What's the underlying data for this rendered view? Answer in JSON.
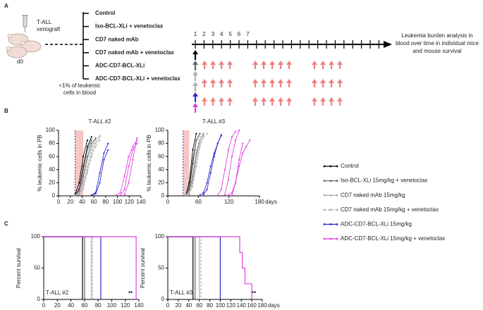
{
  "panel_a": {
    "label": "A",
    "xenograft": [
      "T-ALL",
      "xenograft"
    ],
    "day": "d0",
    "blood_note": [
      "≈1% of leukemic",
      "cells in blood"
    ],
    "groups": [
      {
        "name": "Control",
        "color": "#000000"
      },
      {
        "name": "Iso-BCL-XLi + venetoclax",
        "color": "#666666"
      },
      {
        "name": "CD7 naked mAb",
        "color": "#b0b0b0"
      },
      {
        "name": "CD7 naked mAb + venetoclax",
        "color": "#b0b0b0"
      },
      {
        "name": "ADC-CD7-BCL-XLi",
        "color": "#2a2ad0"
      },
      {
        "name": "ADC-CD7-BCL-XLi + venetoclax",
        "color": "#e040e0"
      }
    ],
    "weeks": [
      1,
      2,
      3,
      4,
      5,
      6,
      7
    ],
    "outcome": [
      "Leukemia  burden analysis in",
      "blood over time in individual mice",
      "and mouse survival"
    ]
  },
  "panel_labels": [
    "B",
    "C"
  ],
  "chart_data": [
    {
      "type": "line",
      "title": "T-ALL #2",
      "ylabel": "% leukemic cells in PB",
      "xlim": [
        0,
        140
      ],
      "xticks": [
        0,
        20,
        40,
        60,
        80,
        100,
        120,
        140
      ],
      "ylim": [
        0,
        100
      ],
      "yticks": [
        0,
        20,
        40,
        60,
        80,
        100
      ],
      "shaded_x": [
        28,
        42
      ],
      "dashed_x": 28,
      "series": [
        {
          "name": "Control",
          "color": "#000000",
          "dash": false,
          "mice": [
            {
              "x": [
                28,
                35,
                42,
                49
              ],
              "values": [
                2,
                20,
                60,
                85
              ]
            },
            {
              "x": [
                28,
                35,
                42,
                49,
                56
              ],
              "values": [
                1,
                10,
                45,
                75,
                90
              ]
            }
          ]
        },
        {
          "name": "Iso-BCL-XLi 15mg/kg + venetoclax",
          "color": "#666666",
          "dash": false,
          "mice": [
            {
              "x": [
                28,
                35,
                42,
                49,
                56,
                63
              ],
              "values": [
                1,
                5,
                30,
                60,
                80,
                88
              ]
            },
            {
              "x": [
                28,
                35,
                42,
                49,
                56
              ],
              "values": [
                1,
                8,
                40,
                70,
                85
              ]
            }
          ]
        },
        {
          "name": "CD7 naked mAb 15mg/kg",
          "color": "#b0b0b0",
          "dash": false,
          "mice": [
            {
              "x": [
                28,
                35,
                42,
                49,
                56,
                63,
                70
              ],
              "values": [
                1,
                3,
                15,
                40,
                65,
                80,
                90
              ]
            },
            {
              "x": [
                28,
                35,
                42,
                49,
                56,
                63
              ],
              "values": [
                1,
                5,
                25,
                55,
                75,
                85
              ]
            }
          ]
        },
        {
          "name": "CD7 naked mAb 15mg/kg + venetoclax",
          "color": "#b0b0b0",
          "dash": true,
          "mice": [
            {
              "x": [
                28,
                35,
                42,
                49,
                56,
                63,
                70
              ],
              "values": [
                1,
                2,
                10,
                35,
                60,
                75,
                85
              ]
            },
            {
              "x": [
                28,
                35,
                42,
                49,
                56,
                63,
                70
              ],
              "values": [
                1,
                3,
                20,
                45,
                70,
                85,
                92
              ]
            }
          ]
        },
        {
          "name": "ADC-CD7-BCL-XLi 15mg/kg",
          "color": "#2a2ad0",
          "dash": false,
          "mice": [
            {
              "x": [
                56,
                63,
                70,
                77,
                84
              ],
              "values": [
                1,
                3,
                20,
                55,
                70
              ]
            },
            {
              "x": [
                56,
                63,
                70,
                77,
                84
              ],
              "values": [
                1,
                5,
                35,
                65,
                80
              ]
            }
          ]
        },
        {
          "name": "ADC-CD7-BCL-XLi 15mg/kg + venetoclax",
          "color": "#e040e0",
          "dash": false,
          "mice": [
            {
              "x": [
                98,
                105,
                112,
                119,
                126,
                133
              ],
              "values": [
                1,
                5,
                30,
                60,
                75,
                85
              ]
            },
            {
              "x": [
                105,
                112,
                119,
                126,
                133
              ],
              "values": [
                1,
                10,
                45,
                70,
                80
              ]
            },
            {
              "x": [
                112,
                119,
                126,
                133
              ],
              "values": [
                2,
                20,
                55,
                88
              ]
            }
          ]
        }
      ]
    },
    {
      "type": "line",
      "title": "T-ALL #3",
      "ylabel": "% leukemic cells in PB",
      "xlabel": "days",
      "xlim": [
        0,
        180
      ],
      "xticks": [
        0,
        60,
        120,
        180
      ],
      "ylim": [
        0,
        100
      ],
      "yticks": [
        0,
        20,
        40,
        60,
        80,
        100
      ],
      "shaded_x": [
        30,
        42
      ],
      "dashed_x": 30,
      "series": [
        {
          "color": "#000000",
          "dash": false,
          "mice": [
            {
              "x": [
                35,
                42,
                49,
                56
              ],
              "values": [
                1,
                20,
                70,
                95
              ]
            },
            {
              "x": [
                35,
                42,
                49,
                56,
                63
              ],
              "values": [
                1,
                10,
                50,
                85,
                95
              ]
            }
          ]
        },
        {
          "color": "#666666",
          "dash": false,
          "mice": [
            {
              "x": [
                35,
                42,
                49,
                56,
                63
              ],
              "values": [
                1,
                15,
                55,
                85,
                95
              ]
            },
            {
              "x": [
                35,
                42,
                49,
                56,
                63,
                70
              ],
              "values": [
                1,
                5,
                30,
                65,
                85,
                95
              ]
            }
          ]
        },
        {
          "color": "#b0b0b0",
          "dash": false,
          "mice": [
            {
              "x": [
                35,
                42,
                49,
                56,
                63,
                70
              ],
              "values": [
                1,
                5,
                25,
                60,
                85,
                95
              ]
            },
            {
              "x": [
                42,
                49,
                56,
                63,
                70
              ],
              "values": [
                3,
                20,
                50,
                80,
                92
              ]
            }
          ]
        },
        {
          "color": "#b0b0b0",
          "dash": true,
          "mice": [
            {
              "x": [
                35,
                42,
                49,
                56,
                63,
                70
              ],
              "values": [
                1,
                8,
                35,
                70,
                90,
                96
              ]
            },
            {
              "x": [
                42,
                49,
                56,
                63,
                70,
                77
              ],
              "values": [
                2,
                15,
                45,
                75,
                90,
                95
              ]
            }
          ]
        },
        {
          "color": "#2a2ad0",
          "dash": false,
          "mice": [
            {
              "x": [
                63,
                70,
                77,
                84,
                91,
                98,
                105
              ],
              "values": [
                1,
                5,
                20,
                45,
                65,
                80,
                92
              ]
            },
            {
              "x": [
                70,
                77,
                84,
                91,
                98,
                105
              ],
              "values": [
                2,
                10,
                35,
                60,
                80,
                93
              ]
            }
          ]
        },
        {
          "color": "#e040e0",
          "dash": false,
          "mice": [
            {
              "x": [
                98,
                105,
                112,
                119,
                126,
                133
              ],
              "values": [
                1,
                10,
                40,
                70,
                90,
                98
              ]
            },
            {
              "x": [
                112,
                119,
                126,
                133,
                140
              ],
              "values": [
                2,
                25,
                60,
                85,
                100
              ]
            },
            {
              "x": [
                119,
                126,
                133,
                140,
                147,
                154,
                161
              ],
              "values": [
                1,
                5,
                20,
                45,
                65,
                75,
                85
              ]
            },
            {
              "x": [
                126,
                133,
                140,
                147
              ],
              "values": [
                1,
                20,
                55,
                80
              ]
            }
          ]
        }
      ]
    },
    {
      "type": "step",
      "ylabel": "Percent survival",
      "inset_label": "T-ALL #2",
      "annotation": "**",
      "xlim": [
        0,
        140
      ],
      "xticks": [
        0,
        20,
        40,
        60,
        80,
        100,
        120,
        140
      ],
      "ylim": [
        0,
        100
      ],
      "yticks": [
        0,
        50,
        100
      ],
      "series": [
        {
          "color": "#000000",
          "dash": false,
          "x": [
            0,
            57,
            57
          ],
          "values": [
            100,
            100,
            0
          ]
        },
        {
          "color": "#666666",
          "dash": false,
          "x": [
            0,
            60,
            60
          ],
          "values": [
            100,
            100,
            0
          ]
        },
        {
          "color": "#b0b0b0",
          "dash": false,
          "x": [
            0,
            70,
            70
          ],
          "values": [
            100,
            100,
            0
          ]
        },
        {
          "color": "#b0b0b0",
          "dash": true,
          "x": [
            0,
            72,
            72
          ],
          "values": [
            100,
            100,
            0
          ]
        },
        {
          "color": "#2a2ad0",
          "dash": false,
          "x": [
            0,
            84,
            84
          ],
          "values": [
            100,
            100,
            0
          ]
        },
        {
          "color": "#e040e0",
          "dash": false,
          "x": [
            0,
            136,
            136
          ],
          "values": [
            100,
            100,
            0
          ]
        }
      ]
    },
    {
      "type": "step",
      "ylabel": "Percent survival",
      "inset_label": "T-ALL #3",
      "annotation": "**",
      "xlabel": "days",
      "xlim": [
        0,
        180
      ],
      "xticks": [
        0,
        20,
        40,
        60,
        80,
        100,
        120,
        140,
        160,
        180
      ],
      "ylim": [
        0,
        100
      ],
      "yticks": [
        0,
        50,
        100
      ],
      "series": [
        {
          "color": "#000000",
          "dash": false,
          "x": [
            0,
            48,
            48
          ],
          "values": [
            100,
            100,
            0
          ]
        },
        {
          "color": "#666666",
          "dash": false,
          "x": [
            0,
            52,
            52
          ],
          "values": [
            100,
            100,
            0
          ]
        },
        {
          "color": "#b0b0b0",
          "dash": false,
          "x": [
            0,
            60,
            60
          ],
          "values": [
            100,
            100,
            0
          ]
        },
        {
          "color": "#b0b0b0",
          "dash": true,
          "x": [
            0,
            63,
            63
          ],
          "values": [
            100,
            100,
            0
          ]
        },
        {
          "color": "#2a2ad0",
          "dash": false,
          "x": [
            0,
            100,
            100
          ],
          "values": [
            100,
            100,
            0
          ]
        },
        {
          "color": "#e040e0",
          "dash": false,
          "x": [
            0,
            137,
            137,
            142,
            142,
            147,
            147,
            160,
            160
          ],
          "values": [
            100,
            100,
            75,
            75,
            50,
            50,
            25,
            25,
            0
          ]
        }
      ]
    }
  ]
}
